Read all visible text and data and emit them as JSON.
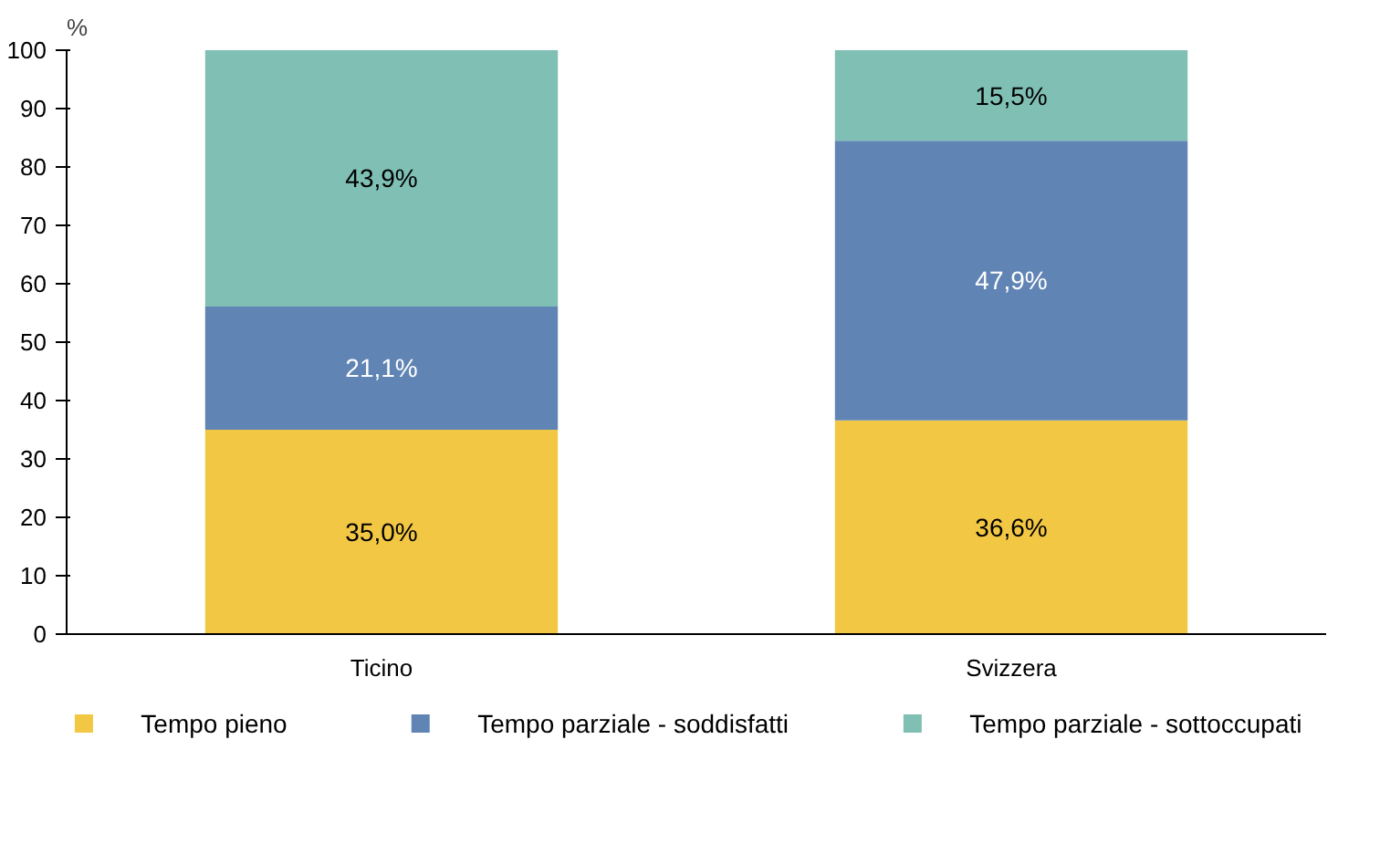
{
  "chart_data": {
    "type": "bar",
    "stacked": true,
    "ylabel": "%",
    "categories": [
      "Ticino",
      "Svizzera"
    ],
    "series": [
      {
        "name": "Tempo pieno",
        "color": "#f2c744",
        "values": [
          35.0,
          36.6
        ],
        "value_labels": [
          "35,0%",
          "36,6%"
        ]
      },
      {
        "name": "Tempo parziale - soddisfatti",
        "color": "#6084b4",
        "values": [
          21.1,
          47.9
        ],
        "value_labels": [
          "21,1%",
          "47,9%"
        ]
      },
      {
        "name": "Tempo parziale - sottoccupati",
        "color": "#7fbfb4",
        "values": [
          43.9,
          15.5
        ],
        "value_labels": [
          "43,9%",
          "15,5%"
        ]
      }
    ],
    "ylim": [
      0,
      100
    ],
    "yticks": [
      0,
      10,
      20,
      30,
      40,
      50,
      60,
      70,
      80,
      90,
      100
    ],
    "grid": false,
    "legend": "bottom"
  }
}
